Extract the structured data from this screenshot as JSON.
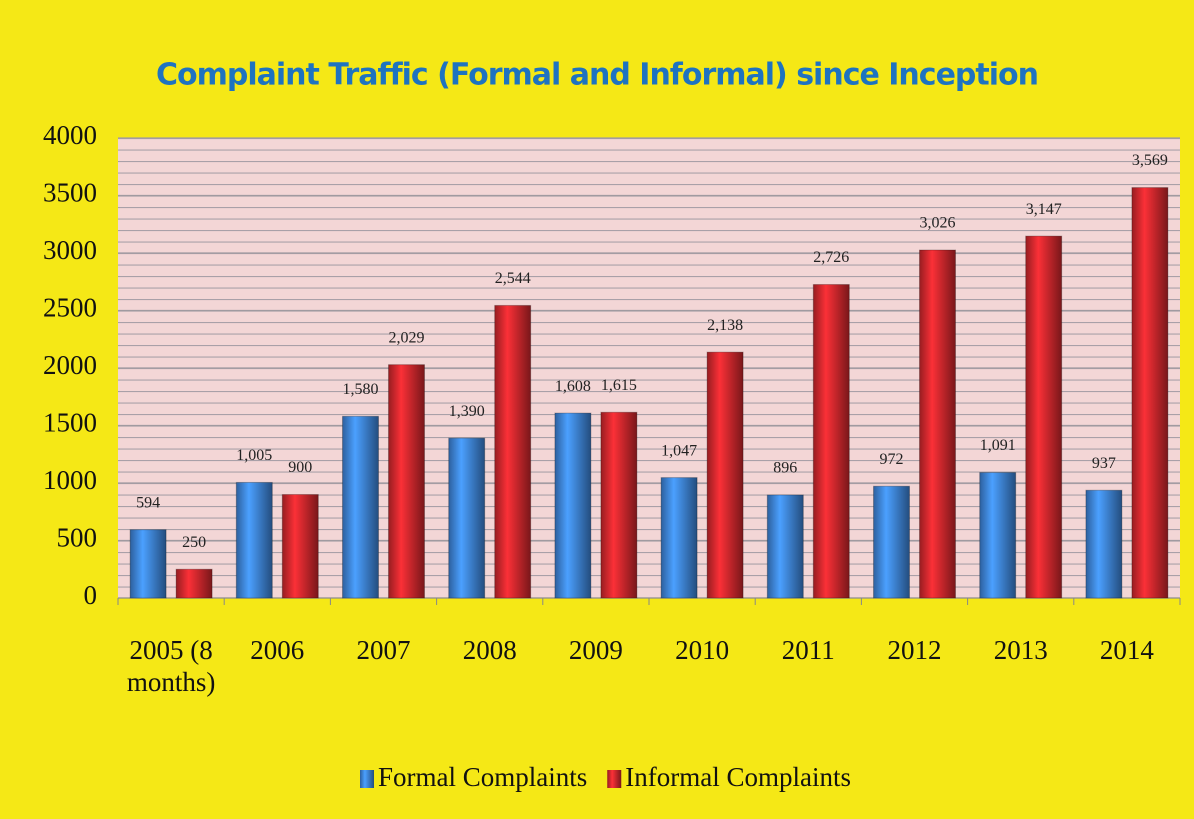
{
  "chart_data": {
    "type": "bar",
    "title": "Complaint Traffic (Formal and Informal) since Inception",
    "categories": [
      "2005 (8 months)",
      "2006",
      "2007",
      "2008",
      "2009",
      "2010",
      "2011",
      "2012",
      "2013",
      "2014"
    ],
    "series": [
      {
        "name": "Formal Complaints",
        "color": "#3c80d2",
        "values": [
          594,
          1005,
          1580,
          1390,
          1608,
          1047,
          896,
          972,
          1091,
          937
        ],
        "value_labels": [
          "594",
          "1,005",
          "1,580",
          "1,390",
          "1,608",
          "1,047",
          "896",
          "972",
          "1,091",
          "937"
        ]
      },
      {
        "name": "Informal Complaints",
        "color": "#c9262c",
        "values": [
          250,
          900,
          2029,
          2544,
          1615,
          2138,
          2726,
          3026,
          3147,
          3569
        ],
        "value_labels": [
          "250",
          "900",
          "2,029",
          "2,544",
          "1,615",
          "2,138",
          "2,726",
          "3,026",
          "3,147",
          "3,569"
        ]
      }
    ],
    "ylim": [
      0,
      4000
    ],
    "yticks": [
      0,
      500,
      1000,
      1500,
      2000,
      2500,
      3000,
      3500,
      4000
    ],
    "grid": true
  }
}
